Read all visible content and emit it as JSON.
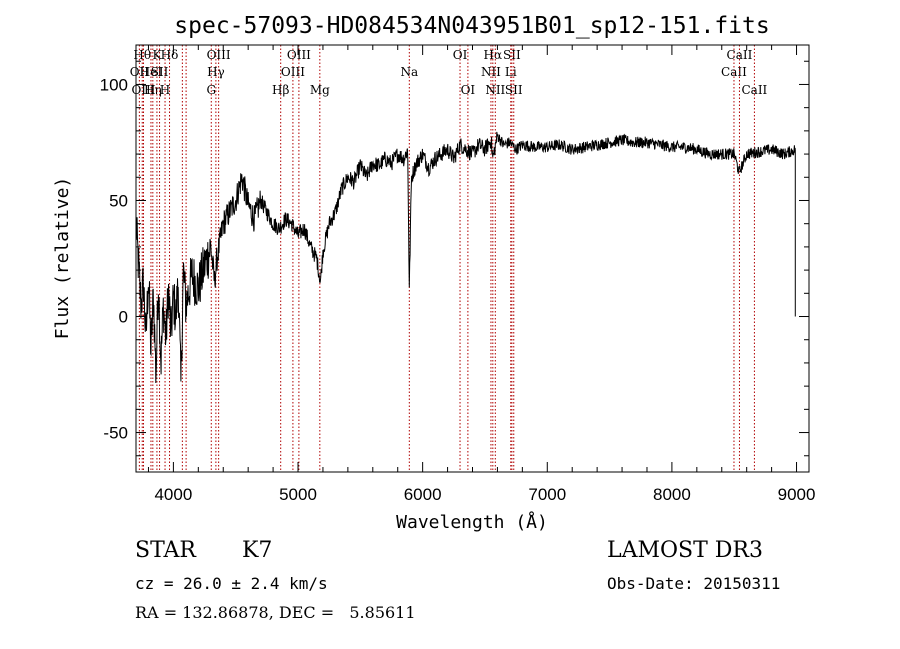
{
  "chart_data": {
    "type": "line",
    "title": "spec-57093-HD084534N043951B01_sp12-151.fits",
    "xlabel": "Wavelength (Å)",
    "ylabel": "Flux (relative)",
    "xlim": [
      3700,
      9100
    ],
    "ylim": [
      -67,
      117
    ],
    "xticks": [
      4000,
      5000,
      6000,
      7000,
      8000,
      9000
    ],
    "yticks": [
      -50,
      0,
      50,
      100
    ],
    "grid": false,
    "series": [
      {
        "name": "flux",
        "anchors": [
          [
            3700,
            40
          ],
          [
            3720,
            22
          ],
          [
            3740,
            5
          ],
          [
            3760,
            15
          ],
          [
            3780,
            -10
          ],
          [
            3800,
            18
          ],
          [
            3820,
            -15
          ],
          [
            3840,
            10
          ],
          [
            3860,
            -25
          ],
          [
            3880,
            15
          ],
          [
            3900,
            -20
          ],
          [
            3920,
            5
          ],
          [
            3940,
            -10
          ],
          [
            3960,
            12
          ],
          [
            3980,
            -8
          ],
          [
            4000,
            8
          ],
          [
            4020,
            0
          ],
          [
            4040,
            15
          ],
          [
            4060,
            -30
          ],
          [
            4080,
            20
          ],
          [
            4100,
            5
          ],
          [
            4150,
            18
          ],
          [
            4200,
            12
          ],
          [
            4250,
            22
          ],
          [
            4300,
            30
          ],
          [
            4330,
            15
          ],
          [
            4350,
            25
          ],
          [
            4400,
            40
          ],
          [
            4450,
            45
          ],
          [
            4500,
            50
          ],
          [
            4550,
            60
          ],
          [
            4600,
            48
          ],
          [
            4650,
            42
          ],
          [
            4700,
            50
          ],
          [
            4750,
            45
          ],
          [
            4800,
            40
          ],
          [
            4850,
            38
          ],
          [
            4900,
            42
          ],
          [
            4950,
            40
          ],
          [
            5000,
            35
          ],
          [
            5050,
            38
          ],
          [
            5100,
            30
          ],
          [
            5150,
            25
          ],
          [
            5180,
            15
          ],
          [
            5200,
            28
          ],
          [
            5250,
            40
          ],
          [
            5300,
            45
          ],
          [
            5350,
            55
          ],
          [
            5400,
            60
          ],
          [
            5450,
            58
          ],
          [
            5500,
            65
          ],
          [
            5550,
            60
          ],
          [
            5600,
            66
          ],
          [
            5650,
            65
          ],
          [
            5700,
            68
          ],
          [
            5750,
            66
          ],
          [
            5800,
            70
          ],
          [
            5850,
            68
          ],
          [
            5880,
            72
          ],
          [
            5893,
            12
          ],
          [
            5910,
            60
          ],
          [
            5950,
            66
          ],
          [
            6000,
            70
          ],
          [
            6050,
            64
          ],
          [
            6100,
            68
          ],
          [
            6150,
            70
          ],
          [
            6200,
            72
          ],
          [
            6250,
            68
          ],
          [
            6300,
            74
          ],
          [
            6350,
            72
          ],
          [
            6400,
            70
          ],
          [
            6450,
            74
          ],
          [
            6500,
            72
          ],
          [
            6550,
            76
          ],
          [
            6563,
            68
          ],
          [
            6600,
            78
          ],
          [
            6650,
            74
          ],
          [
            6700,
            75
          ],
          [
            6750,
            72
          ],
          [
            6800,
            74
          ],
          [
            6900,
            73
          ],
          [
            7000,
            73
          ],
          [
            7100,
            74
          ],
          [
            7200,
            72
          ],
          [
            7300,
            73
          ],
          [
            7400,
            74
          ],
          [
            7500,
            75
          ],
          [
            7600,
            76
          ],
          [
            7700,
            75
          ],
          [
            7800,
            75
          ],
          [
            7900,
            74
          ],
          [
            8000,
            73
          ],
          [
            8100,
            73
          ],
          [
            8200,
            72
          ],
          [
            8300,
            70
          ],
          [
            8400,
            70
          ],
          [
            8500,
            70
          ],
          [
            8540,
            62
          ],
          [
            8600,
            70
          ],
          [
            8700,
            71
          ],
          [
            8800,
            72
          ],
          [
            8900,
            70
          ],
          [
            8990,
            72
          ]
        ]
      }
    ],
    "lines": [
      {
        "label": "OII",
        "x": 3727,
        "row": 1
      },
      {
        "label": "Hθ",
        "x": 3750,
        "row": 0
      },
      {
        "label": "OIII",
        "x": 3760,
        "row": 2
      },
      {
        "label": "HeI",
        "x": 3820,
        "row": 1
      },
      {
        "label": "Hη",
        "x": 3835,
        "row": 2
      },
      {
        "label": "K",
        "x": 3868,
        "row": 0
      },
      {
        "label": "SII",
        "x": 3889,
        "row": 1
      },
      {
        "label": "H",
        "x": 3933,
        "row": 2
      },
      {
        "label": "Hδ",
        "x": 3969,
        "row": 0
      },
      {
        "label": "",
        "x": 4072,
        "row": 1
      },
      {
        "label": "",
        "x": 4102,
        "row": 1
      },
      {
        "label": "G",
        "x": 4304,
        "row": 2
      },
      {
        "label": "Hγ",
        "x": 4341,
        "row": 1
      },
      {
        "label": "OIII",
        "x": 4363,
        "row": 0
      },
      {
        "label": "Hβ",
        "x": 4861,
        "row": 2
      },
      {
        "label": "OIII",
        "x": 4959,
        "row": 1
      },
      {
        "label": "OIII",
        "x": 5007,
        "row": 0
      },
      {
        "label": "Mg",
        "x": 5175,
        "row": 2
      },
      {
        "label": "Na",
        "x": 5893,
        "row": 1
      },
      {
        "label": "OI",
        "x": 6300,
        "row": 0
      },
      {
        "label": "OI",
        "x": 6363,
        "row": 2
      },
      {
        "label": "NII",
        "x": 6548,
        "row": 1
      },
      {
        "label": "Hα",
        "x": 6563,
        "row": 0
      },
      {
        "label": "NII",
        "x": 6583,
        "row": 2
      },
      {
        "label": "Li",
        "x": 6707,
        "row": 1
      },
      {
        "label": "SII",
        "x": 6716,
        "row": 0
      },
      {
        "label": "SII",
        "x": 6731,
        "row": 2
      },
      {
        "label": "CaII",
        "x": 8498,
        "row": 1
      },
      {
        "label": "CaII",
        "x": 8542,
        "row": 0
      },
      {
        "label": "CaII",
        "x": 8662,
        "row": 2
      }
    ]
  },
  "info": {
    "class": "STAR",
    "subclass": "K7",
    "survey": "LAMOST DR3",
    "cz": "cz = 26.0 ± 2.4 km/s",
    "obs_date": "Obs-Date: 20150311",
    "radec": "RA = 132.86878, DEC =   5.85611"
  }
}
